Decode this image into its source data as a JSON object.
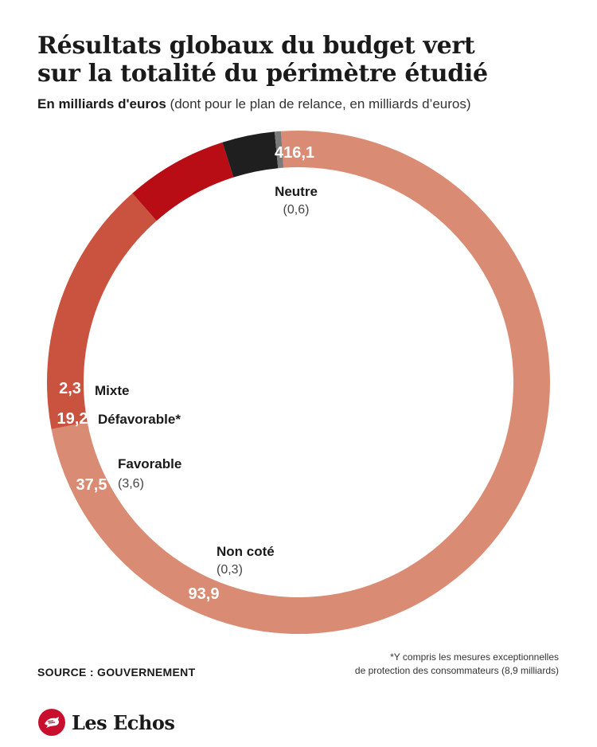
{
  "header": {
    "title_line1": "Résultats globaux du budget vert",
    "title_line2": "sur la totalité du périmètre étudié",
    "subtitle_unit": "En milliards d'euros",
    "subtitle_note": " (dont pour le plan de relance, en milliards d’euros)"
  },
  "chart_data": {
    "type": "pie",
    "variant": "donut",
    "title": "Résultats globaux du budget vert sur la totalité du périmètre étudié",
    "unit": "En milliards d'euros",
    "slices": [
      {
        "category": "Neutre",
        "value": 416.1,
        "value_label": "416,1",
        "relance_label": "(0,6)",
        "color": "#d98c73"
      },
      {
        "category": "Non coté",
        "value": 93.9,
        "value_label": "93,9",
        "relance_label": "(0,3)",
        "color": "#c9533f"
      },
      {
        "category": "Favorable",
        "value": 37.5,
        "value_label": "37,5",
        "relance_label": "(3,6)",
        "color": "#b80d14"
      },
      {
        "category": "Défavorable*",
        "value": 19.2,
        "value_label": "19,2",
        "relance_label": "",
        "color": "#1f1f1f"
      },
      {
        "category": "Mixte",
        "value": 2.3,
        "value_label": "2,3",
        "relance_label": "",
        "color": "#7a7a7a"
      }
    ]
  },
  "footer": {
    "source": "SOURCE : GOUVERNEMENT",
    "footnote_line1": "*Y compris les mesures exceptionnelles",
    "footnote_line2": "de protection des consommateurs (8,9 milliards)",
    "logo_text": "Les Echos",
    "logo_icon": "les-echos-emblem-icon"
  }
}
